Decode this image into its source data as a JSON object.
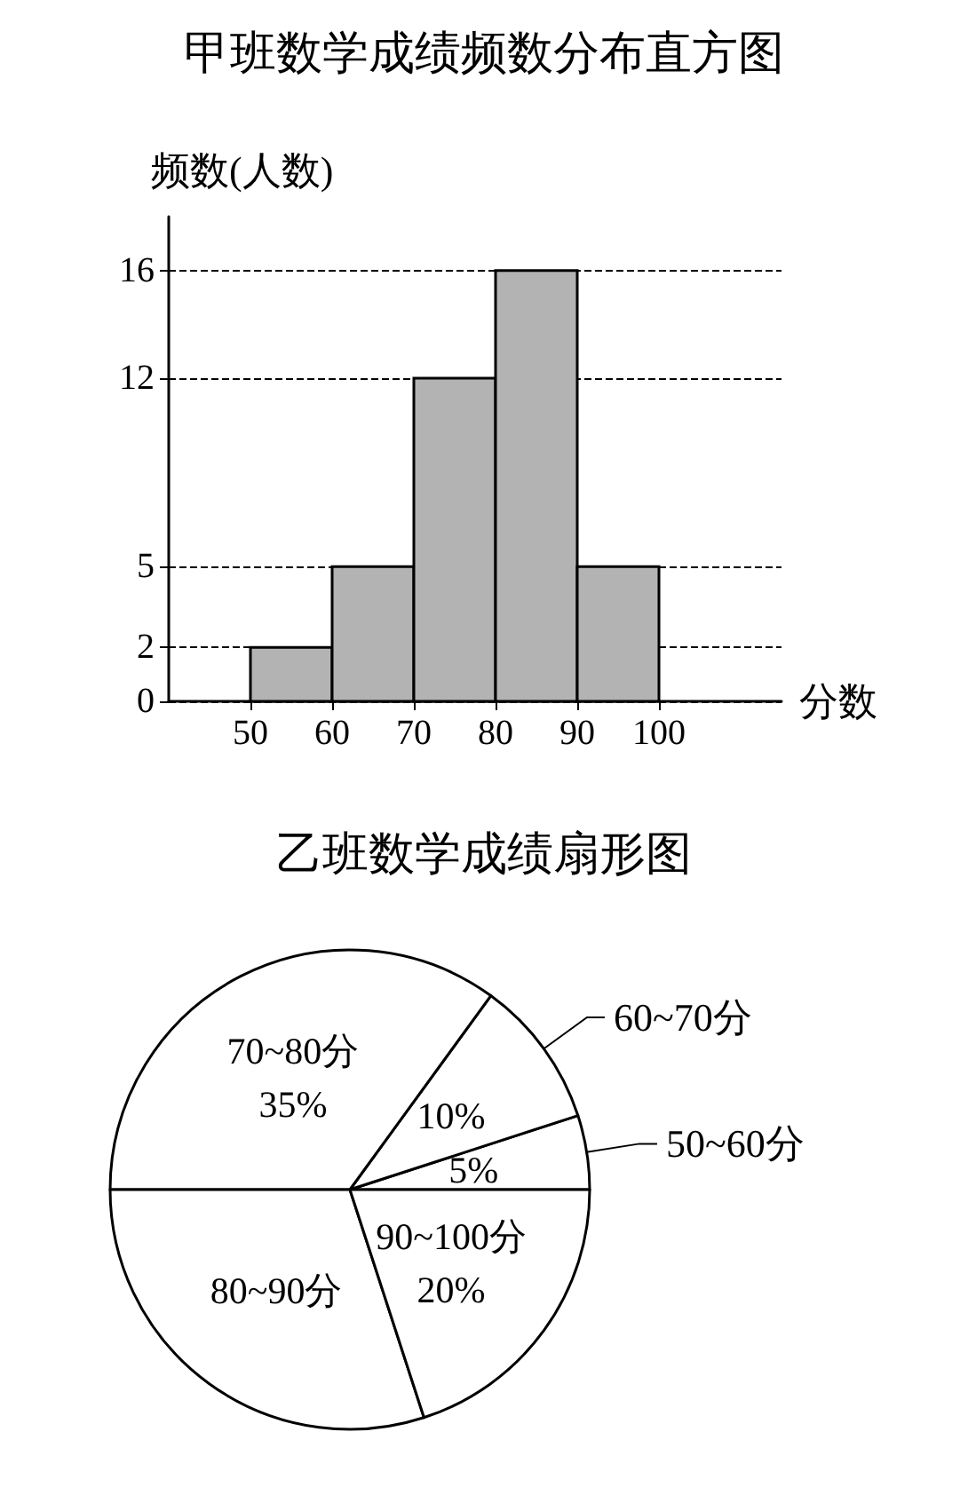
{
  "chart_data": [
    {
      "type": "histogram",
      "title": "甲班数学成绩频数分布直方图",
      "xlabel": "分数",
      "ylabel": "频数(人数)",
      "bins": [
        50,
        60,
        70,
        80,
        90,
        100
      ],
      "values": [
        2,
        5,
        12,
        16,
        5
      ],
      "color": "#b3b3b3",
      "xlim": [
        40,
        115
      ],
      "xticks": [
        50,
        60,
        70,
        80,
        90,
        100
      ],
      "ylim": [
        0,
        18
      ],
      "yticks": [
        0,
        2,
        5,
        12,
        16
      ],
      "grid": "y",
      "line_style": "dashed"
    },
    {
      "type": "pie",
      "title": "乙班数学成绩扇形图",
      "categories": [
        "50~60分",
        "60~70分",
        "70~80分",
        "80~90分",
        "90~100分"
      ],
      "values": [
        5,
        10,
        35,
        30,
        20
      ],
      "value_labels": [
        "5%",
        "10%",
        "35%",
        null,
        "20%"
      ],
      "colors": [
        "#ffffff",
        "#ffffff",
        "#ffffff",
        "#ffffff",
        "#ffffff"
      ]
    }
  ]
}
